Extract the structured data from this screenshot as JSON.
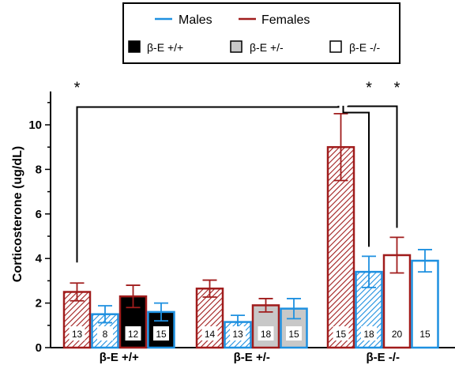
{
  "chart_data": {
    "type": "bar",
    "ylabel": "Corticosterone (ug/dL)",
    "ylim": [
      0,
      11.5
    ],
    "yticks": [
      0,
      2,
      4,
      6,
      8,
      10
    ],
    "legend": {
      "placement": "top-center",
      "series": [
        {
          "label": "Males",
          "color": "#1e90e0"
        },
        {
          "label": "Females",
          "color": "#a01c1c"
        }
      ],
      "genotypes": [
        {
          "label": "β-E +/+",
          "fill": "#000000"
        },
        {
          "label": "β-E +/-",
          "fill": "#c8c8c8"
        },
        {
          "label": "β-E -/-",
          "fill": "#ffffff"
        }
      ]
    },
    "groups": [
      {
        "label": "β-E +/+",
        "fill": "#000000",
        "bars": [
          {
            "sex": "Females",
            "hatched": true,
            "value": 2.5,
            "err": 0.4,
            "n": "13"
          },
          {
            "sex": "Males",
            "hatched": true,
            "value": 1.5,
            "err": 0.38,
            "n": "8"
          },
          {
            "sex": "Females",
            "hatched": false,
            "value": 2.3,
            "err": 0.5,
            "n": "12"
          },
          {
            "sex": "Males",
            "hatched": false,
            "value": 1.6,
            "err": 0.4,
            "n": "15"
          }
        ]
      },
      {
        "label": "β-E +/-",
        "fill": "#c8c8c8",
        "bars": [
          {
            "sex": "Females",
            "hatched": true,
            "value": 2.65,
            "err": 0.38,
            "n": "14"
          },
          {
            "sex": "Males",
            "hatched": true,
            "value": 1.15,
            "err": 0.3,
            "n": "13"
          },
          {
            "sex": "Females",
            "hatched": false,
            "value": 1.9,
            "err": 0.3,
            "n": "18"
          },
          {
            "sex": "Males",
            "hatched": false,
            "value": 1.75,
            "err": 0.45,
            "n": "15"
          }
        ]
      },
      {
        "label": "β-E -/-",
        "fill": "#ffffff",
        "bars": [
          {
            "sex": "Females",
            "hatched": true,
            "value": 9.0,
            "err": 1.5,
            "n": "15"
          },
          {
            "sex": "Males",
            "hatched": true,
            "value": 3.4,
            "err": 0.7,
            "n": "18"
          },
          {
            "sex": "Females",
            "hatched": false,
            "value": 4.15,
            "err": 0.8,
            "n": "20"
          },
          {
            "sex": "Males",
            "hatched": false,
            "value": 3.9,
            "err": 0.5,
            "n": "15"
          }
        ]
      }
    ],
    "significance": [
      {
        "from": "β-E +/+ Females hatched",
        "to": "β-E -/- Females hatched",
        "level": 10.8,
        "mark": "*"
      },
      {
        "from": "β-E -/- Females hatched",
        "to": "β-E -/- Males hatched",
        "level": 10.8,
        "mark": "*"
      },
      {
        "from": "β-E -/- Females hatched",
        "to": "β-E -/- Females",
        "level": 10.8,
        "mark": "*"
      }
    ]
  }
}
